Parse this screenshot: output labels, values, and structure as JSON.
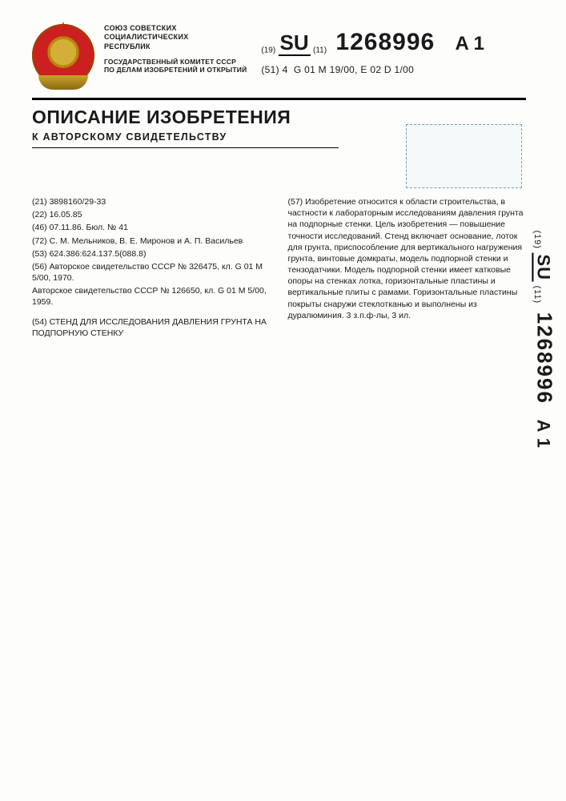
{
  "header": {
    "org_line1": "СОЮЗ СОВЕТСКИХ",
    "org_line2": "СОЦИАЛИСТИЧЕСКИХ",
    "org_line3": "РЕСПУБЛИК",
    "prefix19": "(19)",
    "su": "SU",
    "prefix11": "(11)",
    "number": "1268996",
    "suffix": "A 1",
    "class_prefix": "(51) 4",
    "class_codes": "G 01 M 19/00, E 02 D 1/00",
    "committee_line1": "ГОСУДАРСТВЕННЫЙ КОМИТЕТ СССР",
    "committee_line2": "ПО ДЕЛАМ ИЗОБРЕТЕНИЙ И ОТКРЫТИЙ"
  },
  "titles": {
    "main": "ОПИСАНИЕ ИЗОБРЕТЕНИЯ",
    "sub": "К АВТОРСКОМУ СВИДЕТЕЛЬСТВУ"
  },
  "left_col": {
    "f21": "(21) 3898160/29-33",
    "f22": "(22) 16.05.85",
    "f46": "(46) 07.11.86. Бюл. № 41",
    "f72": "(72) С. М. Мельников, В. Е. Миронов и А. П. Васильев",
    "f53": "(53) 624.386:624.137.5(088.8)",
    "f56a": "(56) Авторское свидетельство СССР № 326475, кл. G 01 M 5/00, 1970.",
    "f56b": "Авторское свидетельство СССР № 126650, кл. G 01 M 5/00, 1959.",
    "f54": "(54) СТЕНД ДЛЯ ИССЛЕДОВАНИЯ ДАВЛЕНИЯ ГРУНТА НА ПОДПОРНУЮ СТЕНКУ"
  },
  "right_col": {
    "f57": "(57) Изобретение относится к области строительства, в частности к лабораторным исследованиям давления грунта на подпорные стенки. Цель изобретения — повышение точности исследований. Стенд включает основание, лоток для грунта, приспособление для вертикального нагружения грунта, винтовые домкраты, модель подпорной стенки и тензодатчики. Модель подпорной стенки имеет катковые опоры на стенках лотка, горизонтальные пластины и вертикальные плиты с рамами. Горизонтальные пластины покрыты снаружи стеклотканью и выполнены из дуралюминия. 3 з.п.ф-лы, 3 ил."
  },
  "side": {
    "prefix19": "(19)",
    "su": "SU",
    "prefix11": "(11)",
    "number": "1268996",
    "suffix": "A 1"
  }
}
